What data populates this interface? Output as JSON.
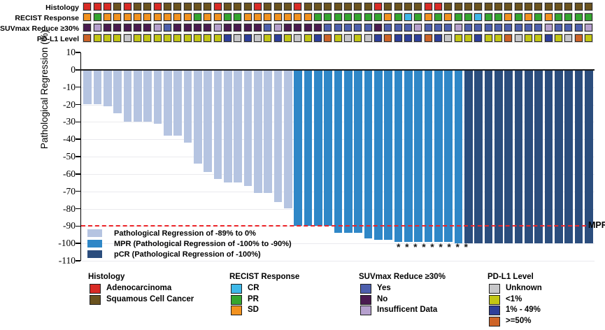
{
  "tracks": {
    "rows": [
      {
        "label": "Histology",
        "values": [
          "A",
          "A",
          "A",
          "S",
          "A",
          "S",
          "S",
          "A",
          "S",
          "S",
          "S",
          "S",
          "S",
          "A",
          "S",
          "S",
          "S",
          "A",
          "S",
          "S",
          "S",
          "A",
          "S",
          "S",
          "S",
          "S",
          "S",
          "S",
          "S",
          "A",
          "S",
          "S",
          "S",
          "S",
          "A",
          "A",
          "S",
          "S",
          "S",
          "S",
          "S",
          "S",
          "S",
          "S",
          "S",
          "S",
          "S",
          "S",
          "S",
          "S",
          "S"
        ],
        "palette": {
          "A": "#D92B25",
          "S": "#6B531E"
        },
        "legend": {
          "A": "Adenocarcinoma",
          "S": "Squamous Cell Cancer"
        }
      },
      {
        "label": "RECIST Response",
        "values": [
          "SD",
          "PR",
          "SD",
          "SD",
          "SD",
          "SD",
          "SD",
          "SD",
          "SD",
          "SD",
          "SD",
          "PR",
          "SD",
          "SD",
          "PR",
          "PR",
          "SD",
          "SD",
          "SD",
          "SD",
          "SD",
          "SD",
          "SD",
          "PR",
          "PR",
          "PR",
          "PR",
          "PR",
          "PR",
          "PR",
          "SD",
          "PR",
          "CR",
          "PR",
          "SD",
          "PR",
          "SD",
          "PR",
          "PR",
          "CR",
          "PR",
          "PR",
          "SD",
          "PR",
          "SD",
          "PR",
          "SD",
          "PR",
          "PR",
          "PR",
          "PR"
        ],
        "palette": {
          "CR": "#3FB9E9",
          "PR": "#35A62F",
          "SD": "#F2921F"
        },
        "legend": {
          "CR": "CR",
          "PR": "PR",
          "SD": "SD"
        }
      },
      {
        "label": "SUVmax Reduce ≥30%",
        "values": [
          "No",
          "ID",
          "No",
          "No",
          "No",
          "No",
          "No",
          "ID",
          "Yes",
          "No",
          "No",
          "No",
          "No",
          "ID",
          "No",
          "No",
          "No",
          "No",
          "Yes",
          "ID",
          "No",
          "No",
          "No",
          "No",
          "Yes",
          "Yes",
          "Yes",
          "Yes",
          "Yes",
          "No",
          "Yes",
          "Yes",
          "Yes",
          "ID",
          "Yes",
          "Yes",
          "Yes",
          "ID",
          "Yes",
          "Yes",
          "Yes",
          "Yes",
          "Yes",
          "Yes",
          "Yes",
          "Yes",
          "ID",
          "Yes",
          "Yes",
          "Yes",
          "ID"
        ],
        "palette": {
          "Yes": "#4D5FAD",
          "No": "#4A1A50",
          "ID": "#B6A0CE"
        },
        "legend": {
          "Yes": "Yes",
          "No": "No",
          "ID": "Insufficent Data"
        }
      },
      {
        "label": "PD-L1 Level",
        "values": [
          "H",
          "L",
          "L",
          "L",
          "U",
          "L",
          "L",
          "L",
          "L",
          "L",
          "L",
          "L",
          "L",
          "L",
          "M",
          "U",
          "M",
          "U",
          "L",
          "M",
          "L",
          "U",
          "L",
          "M",
          "H",
          "L",
          "U",
          "L",
          "U",
          "M",
          "H",
          "M",
          "M",
          "M",
          "H",
          "M",
          "U",
          "L",
          "L",
          "M",
          "L",
          "L",
          "H",
          "U",
          "L",
          "L",
          "M",
          "L",
          "U",
          "H",
          "L"
        ],
        "palette": {
          "U": "#C7C7C9",
          "L": "#C3C715",
          "M": "#2E3F9A",
          "H": "#CE6428"
        },
        "legend": {
          "U": "Unknown",
          "L": "<1%",
          "M": "1% - 49%",
          "H": ">=50%"
        }
      }
    ]
  },
  "chart_data": {
    "type": "bar",
    "subtype": "waterfall",
    "title": "",
    "xlabel": "",
    "ylabel": "Pathological Regression (%)",
    "ylim": [
      -110,
      10
    ],
    "yticks": [
      10,
      0,
      -10,
      -20,
      -30,
      -40,
      -50,
      -60,
      -70,
      -80,
      -90,
      -100,
      -110
    ],
    "grid": "horizontal-light",
    "values": [
      -20,
      -20,
      -21,
      -25,
      -30,
      -30,
      -30,
      -31,
      -38,
      -38,
      -42,
      -54,
      -59,
      -63,
      -65,
      -65,
      -67,
      -71,
      -71,
      -76,
      -80,
      -90,
      -90,
      -90,
      -90,
      -94,
      -94,
      -94,
      -97,
      -98,
      -98,
      -99,
      -99,
      -99,
      -99,
      -99,
      -99,
      -100,
      -100,
      -100,
      -100,
      -100,
      -100,
      -100,
      -100,
      -100,
      -100,
      -100,
      -100,
      -100,
      -100
    ],
    "classes": [
      "reg",
      "reg",
      "reg",
      "reg",
      "reg",
      "reg",
      "reg",
      "reg",
      "reg",
      "reg",
      "reg",
      "reg",
      "reg",
      "reg",
      "reg",
      "reg",
      "reg",
      "reg",
      "reg",
      "reg",
      "reg",
      "mpr",
      "mpr",
      "mpr",
      "mpr",
      "mpr",
      "mpr",
      "mpr",
      "mpr",
      "mpr",
      "mpr",
      "mpr",
      "mpr",
      "mpr",
      "mpr",
      "mpr",
      "mpr",
      "mpr",
      "pcr",
      "pcr",
      "pcr",
      "pcr",
      "pcr",
      "pcr",
      "pcr",
      "pcr",
      "pcr",
      "pcr",
      "pcr",
      "pcr",
      "pcr"
    ],
    "palette": {
      "reg": "#B5C4E1",
      "mpr": "#2F87C7",
      "pcr": "#2B4D7D"
    },
    "reference_line": {
      "value": -90,
      "label": "MPR",
      "color": "#EB2429",
      "style": "dashed"
    },
    "asterisks": {
      "symbol": "*",
      "count": 9
    },
    "legend": {
      "position": "inside-bottom-left",
      "items": [
        {
          "label": "Pathological Regression of -89% to 0%",
          "class": "reg"
        },
        {
          "label": "MPR (Pathological Regression of -100% to -90%)",
          "class": "mpr"
        },
        {
          "label": "pCR (Pathological Regression of -100%)",
          "class": "pcr"
        }
      ]
    }
  },
  "legends": [
    {
      "title": "Histology",
      "items": [
        {
          "label": "Adenocarcinoma",
          "color": "#D92B25"
        },
        {
          "label": "Squamous Cell Cancer",
          "color": "#6B531E"
        }
      ]
    },
    {
      "title": "RECIST Response",
      "items": [
        {
          "label": "CR",
          "color": "#3FB9E9"
        },
        {
          "label": "PR",
          "color": "#35A62F"
        },
        {
          "label": "SD",
          "color": "#F2921F"
        }
      ]
    },
    {
      "title": "SUVmax Reduce ≥30%",
      "items": [
        {
          "label": "Yes",
          "color": "#4D5FAD"
        },
        {
          "label": "No",
          "color": "#4A1A50"
        },
        {
          "label": "Insufficent Data",
          "color": "#B6A0CE"
        }
      ]
    },
    {
      "title": "PD-L1 Level",
      "items": [
        {
          "label": "Unknown",
          "color": "#C7C7C9"
        },
        {
          "label": "<1%",
          "color": "#C3C715"
        },
        {
          "label": "1% - 49%",
          "color": "#2E3F9A"
        },
        {
          "label": ">=50%",
          "color": "#CE6428"
        }
      ]
    }
  ]
}
